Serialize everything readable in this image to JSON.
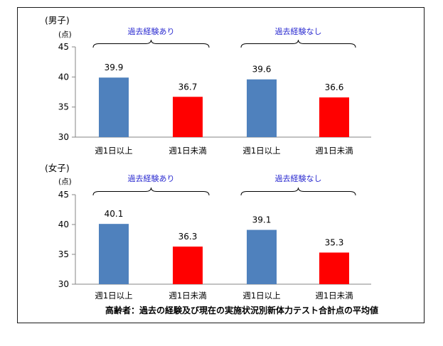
{
  "chart_data": [
    {
      "type": "bar",
      "panel_title": "(男子)",
      "ylabel": "(点)",
      "ylim": [
        30,
        45
      ],
      "yticks": [
        30,
        35,
        40,
        45
      ],
      "categories": [
        "週1日以上",
        "週1日未満",
        "週1日以上",
        "週1日未満"
      ],
      "values": [
        39.9,
        36.7,
        39.6,
        36.6
      ],
      "data_labels": [
        "39.9",
        "36.7",
        "39.6",
        "36.6"
      ],
      "bar_colors": [
        "#4f81bd",
        "#ff0000",
        "#4f81bd",
        "#ff0000"
      ],
      "groups": [
        {
          "label": "過去経験あり",
          "categories": [
            0,
            1
          ]
        },
        {
          "label": "過去経験なし",
          "categories": [
            2,
            3
          ]
        }
      ]
    },
    {
      "type": "bar",
      "panel_title": "(女子)",
      "ylabel": "(点)",
      "ylim": [
        30,
        45
      ],
      "yticks": [
        30,
        35,
        40,
        45
      ],
      "categories": [
        "週1日以上",
        "週1日未満",
        "週1日以上",
        "週1日未満"
      ],
      "values": [
        40.1,
        36.3,
        39.1,
        35.3
      ],
      "data_labels": [
        "40.1",
        "36.3",
        "39.1",
        "35.3"
      ],
      "bar_colors": [
        "#4f81bd",
        "#ff0000",
        "#4f81bd",
        "#ff0000"
      ],
      "groups": [
        {
          "label": "過去経験あり",
          "categories": [
            0,
            1
          ]
        },
        {
          "label": "過去経験なし",
          "categories": [
            2,
            3
          ]
        }
      ]
    }
  ],
  "caption": "高齢者：過去の経験及び現在の実施状況別新体力テスト合計点の平均値",
  "colors": {
    "axis": "#868686",
    "brace": "#000000",
    "group_label": "#2b2bd0"
  }
}
